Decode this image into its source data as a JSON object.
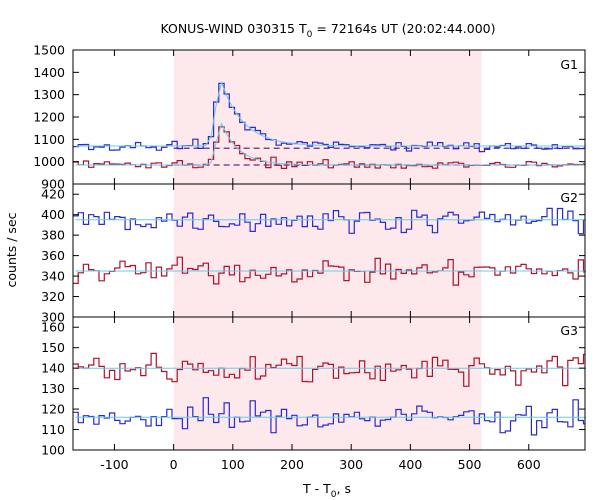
{
  "chart_data": {
    "type": "line",
    "title": {
      "main": "KONUS-WIND 030315 T",
      "sub": "0",
      "rest": " = 72164s UT (20:02:44.000)"
    },
    "xlabel": {
      "main": "T - T",
      "sub": "0",
      "rest": ", s"
    },
    "ylabel": "counts / sec",
    "xlim": [
      -170,
      695
    ],
    "xticks": [
      -100,
      0,
      100,
      200,
      300,
      400,
      500,
      600
    ],
    "highlight_interval": [
      0,
      520
    ],
    "colors": {
      "blue": "#2a2ad0",
      "red": "#b0102a",
      "fit": "#66ccee",
      "shade": "#fde8ec",
      "dashed": "#6a2a7a"
    },
    "panels": [
      {
        "name": "G1",
        "ylim": [
          900,
          1500
        ],
        "yticks": [
          900,
          1000,
          1100,
          1200,
          1300,
          1400,
          1500
        ],
        "bin_width": 8.8,
        "series": [
          {
            "color": "blue",
            "background": 1070,
            "noise": 15,
            "pulse": {
              "peak": 80,
              "amp": 290,
              "rise": 12,
              "decay": 38
            }
          },
          {
            "color": "red",
            "background": 985,
            "noise": 14,
            "pulse": {
              "peak": 80,
              "amp": 190,
              "rise": 10,
              "decay": 30
            }
          }
        ],
        "dashed_levels": [
          1060,
          985
        ]
      },
      {
        "name": "G2",
        "ylim": [
          300,
          430
        ],
        "yticks": [
          300,
          320,
          340,
          360,
          380,
          400,
          420
        ],
        "bin_width": 8.8,
        "series": [
          {
            "color": "blue",
            "background": 395,
            "noise": 8
          },
          {
            "color": "red",
            "background": 345,
            "noise": 8
          }
        ]
      },
      {
        "name": "G3",
        "ylim": [
          100,
          165
        ],
        "yticks": [
          100,
          110,
          120,
          130,
          140,
          150,
          160
        ],
        "bin_width": 8.8,
        "series": [
          {
            "color": "red",
            "background": 140,
            "noise": 5.5
          },
          {
            "color": "blue",
            "background": 116,
            "noise": 5
          }
        ]
      }
    ]
  }
}
